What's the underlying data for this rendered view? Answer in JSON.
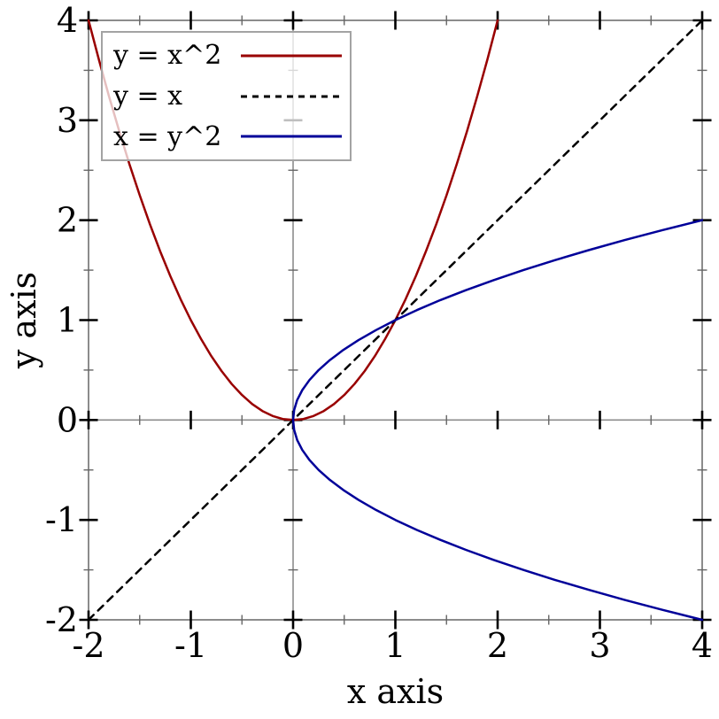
{
  "chart_data": {
    "type": "line",
    "title": "",
    "xlabel": "x axis",
    "ylabel": "y axis",
    "xlim": [
      -2,
      4
    ],
    "ylim": [
      -2,
      4
    ],
    "grid": false,
    "legend_position": "top-left",
    "axis_color": "#8c8c8c",
    "tick_major_color": "#000000",
    "tick_minor_color": "#666666",
    "x_major_ticks": [
      -2,
      -1,
      0,
      1,
      2,
      3,
      4
    ],
    "x_minor_ticks": [
      -1.5,
      -0.5,
      0.5,
      1.5,
      2.5,
      3.5
    ],
    "y_major_ticks": [
      -2,
      -1,
      0,
      1,
      2,
      3,
      4
    ],
    "y_minor_ticks": [
      -1.5,
      -0.5,
      0.5,
      1.5,
      2.5,
      3.5
    ],
    "x_tick_labels": [
      "-2",
      "-1",
      "0",
      "1",
      "2",
      "3",
      "4"
    ],
    "y_tick_labels": [
      "-2",
      "-1",
      "0",
      "1",
      "2",
      "3",
      "4"
    ],
    "series": [
      {
        "label": "y = x^2",
        "color": "#990000",
        "dash": "",
        "points": [
          [
            -2,
            4
          ],
          [
            -1.9,
            3.61
          ],
          [
            -1.8,
            3.24
          ],
          [
            -1.7,
            2.89
          ],
          [
            -1.6,
            2.56
          ],
          [
            -1.5,
            2.25
          ],
          [
            -1.4,
            1.96
          ],
          [
            -1.3,
            1.69
          ],
          [
            -1.2,
            1.44
          ],
          [
            -1.1,
            1.21
          ],
          [
            -1,
            1
          ],
          [
            -0.9,
            0.81
          ],
          [
            -0.8,
            0.64
          ],
          [
            -0.7,
            0.49
          ],
          [
            -0.6,
            0.36
          ],
          [
            -0.5,
            0.25
          ],
          [
            -0.4,
            0.16
          ],
          [
            -0.3,
            0.09
          ],
          [
            -0.2,
            0.04
          ],
          [
            -0.1,
            0.01
          ],
          [
            0,
            0
          ],
          [
            0.1,
            0.01
          ],
          [
            0.2,
            0.04
          ],
          [
            0.3,
            0.09
          ],
          [
            0.4,
            0.16
          ],
          [
            0.5,
            0.25
          ],
          [
            0.6,
            0.36
          ],
          [
            0.7,
            0.49
          ],
          [
            0.8,
            0.64
          ],
          [
            0.9,
            0.81
          ],
          [
            1,
            1
          ],
          [
            1.1,
            1.21
          ],
          [
            1.2,
            1.44
          ],
          [
            1.3,
            1.69
          ],
          [
            1.4,
            1.96
          ],
          [
            1.5,
            2.25
          ],
          [
            1.6,
            2.56
          ],
          [
            1.7,
            2.89
          ],
          [
            1.8,
            3.24
          ],
          [
            1.9,
            3.61
          ],
          [
            2,
            4
          ]
        ]
      },
      {
        "label": "y = x",
        "color": "#000000",
        "dash": "8 7",
        "points": [
          [
            -2,
            -2
          ],
          [
            4,
            4
          ]
        ]
      },
      {
        "label": "x = y^2",
        "color": "#000099",
        "dash": "",
        "points": [
          [
            4,
            -2
          ],
          [
            3.61,
            -1.9
          ],
          [
            3.24,
            -1.8
          ],
          [
            2.89,
            -1.7
          ],
          [
            2.56,
            -1.6
          ],
          [
            2.25,
            -1.5
          ],
          [
            1.96,
            -1.4
          ],
          [
            1.69,
            -1.3
          ],
          [
            1.44,
            -1.2
          ],
          [
            1.21,
            -1.1
          ],
          [
            1,
            -1
          ],
          [
            0.81,
            -0.9
          ],
          [
            0.64,
            -0.8
          ],
          [
            0.49,
            -0.7
          ],
          [
            0.36,
            -0.6
          ],
          [
            0.25,
            -0.5
          ],
          [
            0.16,
            -0.4
          ],
          [
            0.09,
            -0.3
          ],
          [
            0.04,
            -0.2
          ],
          [
            0.01,
            -0.1
          ],
          [
            0,
            0
          ],
          [
            0.01,
            0.1
          ],
          [
            0.04,
            0.2
          ],
          [
            0.09,
            0.3
          ],
          [
            0.16,
            0.4
          ],
          [
            0.25,
            0.5
          ],
          [
            0.36,
            0.6
          ],
          [
            0.49,
            0.7
          ],
          [
            0.64,
            0.8
          ],
          [
            0.81,
            0.9
          ],
          [
            1,
            1
          ],
          [
            1.21,
            1.1
          ],
          [
            1.44,
            1.2
          ],
          [
            1.69,
            1.3
          ],
          [
            1.96,
            1.4
          ],
          [
            2.25,
            1.5
          ],
          [
            2.56,
            1.6
          ],
          [
            2.89,
            1.7
          ],
          [
            3.24,
            1.8
          ],
          [
            3.61,
            1.9
          ],
          [
            4,
            2
          ]
        ]
      }
    ]
  }
}
